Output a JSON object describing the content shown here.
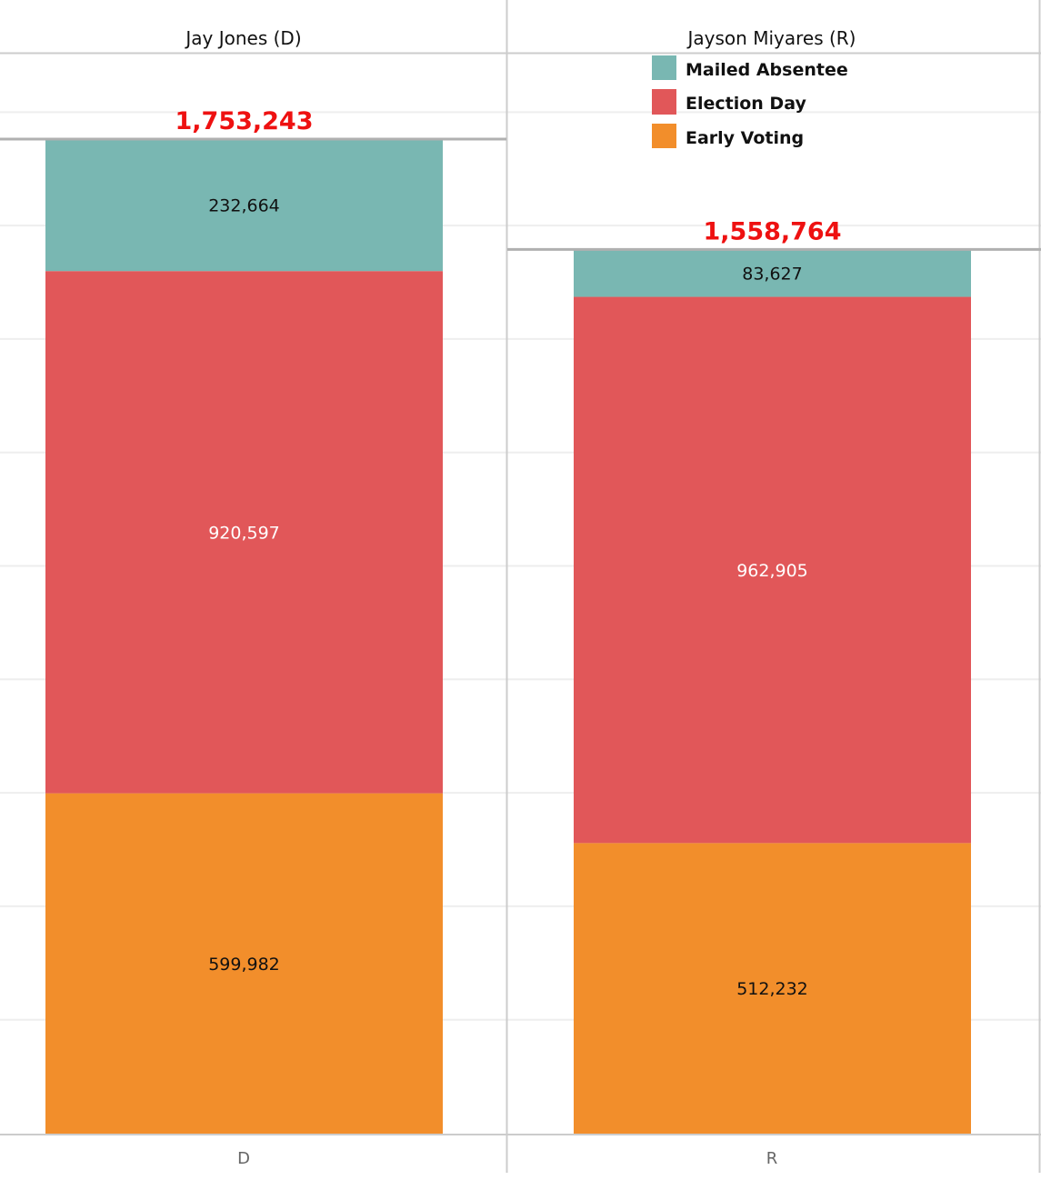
{
  "chart_data": {
    "type": "bar",
    "stacked": true,
    "categories": [
      "D",
      "R"
    ],
    "panel_headers": [
      "Jay Jones (D)",
      "Jayson Miyares (R)"
    ],
    "series": [
      {
        "name": "Early Voting",
        "color": "#F28E2B",
        "values": [
          599982,
          512232
        ],
        "labels": [
          "599,982",
          "512,232"
        ],
        "label_color": "#111111"
      },
      {
        "name": "Election Day",
        "color": "#E15759",
        "values": [
          920597,
          962905
        ],
        "labels": [
          "920,597",
          "962,905"
        ],
        "label_color": "#ffffff"
      },
      {
        "name": "Mailed Absentee",
        "color": "#79B7B2",
        "values": [
          232664,
          83627
        ],
        "labels": [
          "232,664",
          "83,627"
        ],
        "label_color": "#111111"
      }
    ],
    "totals": [
      1753243,
      1558764
    ],
    "total_labels": [
      "1,753,243",
      "1,558,764"
    ],
    "total_color": "#EE1111",
    "legend": {
      "position": "top-right",
      "items": [
        {
          "label": "Mailed Absentee",
          "color": "#79B7B2"
        },
        {
          "label": "Election Day",
          "color": "#E15759"
        },
        {
          "label": "Early Voting",
          "color": "#F28E2B"
        }
      ]
    },
    "ylim": [
      0,
      1753243
    ],
    "grid_step": 200000,
    "grid": true,
    "xlabel": "",
    "ylabel": ""
  }
}
